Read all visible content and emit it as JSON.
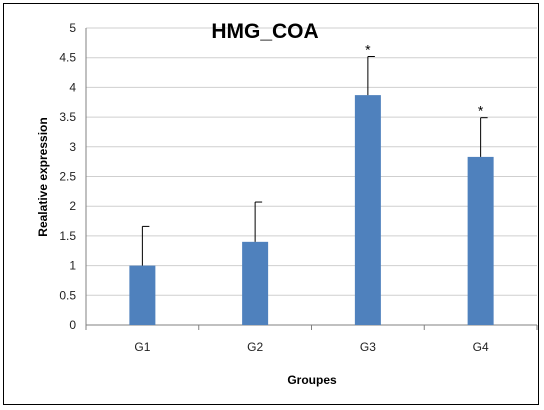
{
  "chart_data": {
    "type": "bar",
    "title": "HMG_COA",
    "xlabel": "Groupes",
    "ylabel": "Realative expression",
    "categories": [
      "G1",
      "G2",
      "G3",
      "G4"
    ],
    "values": [
      1.0,
      1.4,
      3.87,
      2.83
    ],
    "errors": [
      0.66,
      0.67,
      0.65,
      0.66
    ],
    "annotations": [
      "",
      "",
      "*",
      "*"
    ],
    "ylim": [
      0,
      5
    ],
    "yticks": [
      "0",
      "0.5",
      "1",
      "1.5",
      "2",
      "2.5",
      "3",
      "3.5",
      "4",
      "4.5",
      "5"
    ],
    "grid": true,
    "legend": "none",
    "bar_color": "#4f81bd"
  }
}
